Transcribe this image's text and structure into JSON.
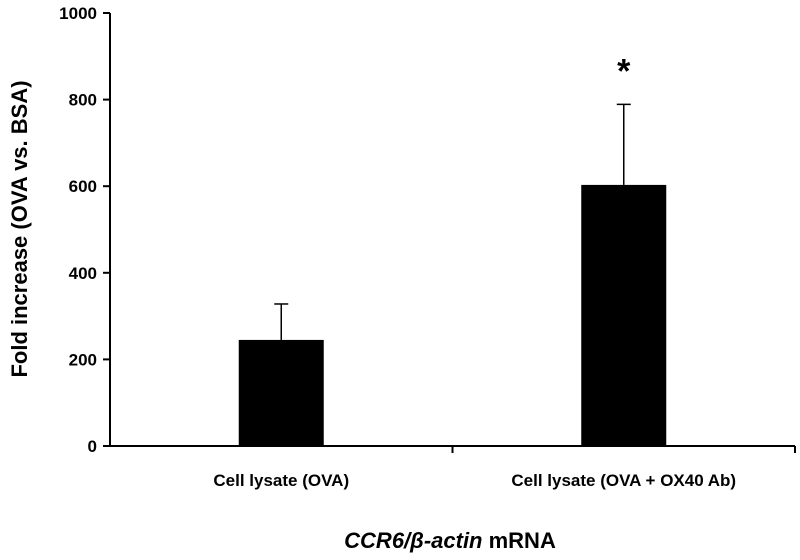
{
  "chart_data": {
    "type": "bar",
    "categories": [
      "Cell lysate (OVA)",
      "Cell lysate (OVA + OX40 Ab)"
    ],
    "values": [
      245,
      603
    ],
    "error_upper": [
      328,
      789
    ],
    "annotations": [
      "",
      "*"
    ],
    "ylabel": "Fold increase (OVA vs. BSA)",
    "xlabel_italic": "CCR6/β-actin",
    "xlabel_rest": " mRNA",
    "ylim": [
      0,
      1000
    ],
    "yticks": [
      0,
      200,
      400,
      600,
      800,
      1000
    ],
    "grid": false,
    "bar_color": "#000000"
  }
}
